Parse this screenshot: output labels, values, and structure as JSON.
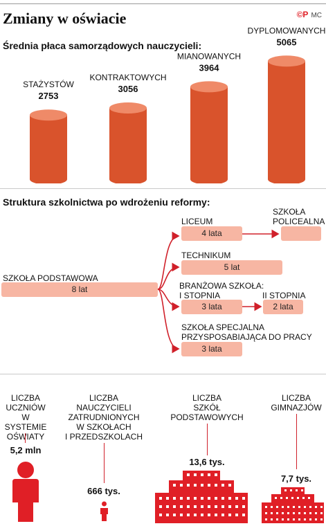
{
  "header": {
    "title": "Zmiany w oświacie",
    "brand_logo": "©P",
    "brand_text": "MC"
  },
  "colors": {
    "accent": "#e01f26",
    "cylinder": "#d9532c",
    "cylinder_top": "#ef8a68",
    "box": "#f7b6a3",
    "arrow": "#d0202a"
  },
  "salary": {
    "heading": "Średnia płaca samorządowych nauczycieli:"
  },
  "chart_data": {
    "type": "bar",
    "categories": [
      "STAŻYSTÓW",
      "KONTRAKTOWYCH",
      "MIANOWANYCH",
      "DYPLOMOWANYCH"
    ],
    "values": [
      2753,
      3056,
      3964,
      5065
    ],
    "value_labels": [
      "2753",
      "3056",
      "3964",
      "5065"
    ],
    "ylim": [
      0,
      5400
    ]
  },
  "structure": {
    "heading": "Struktura szkolnictwa po wdrożeniu reformy:",
    "primary": {
      "label": "SZKOŁA PODSTAWOWA",
      "years": "8 lat"
    },
    "liceum": {
      "label": "LICEUM",
      "years": "4 lata"
    },
    "policealna": {
      "label_line1": "SZKOŁA",
      "label_line2": "POLICEALNA"
    },
    "technikum": {
      "label": "TECHNIKUM",
      "years": "5 lat"
    },
    "branzowa": {
      "label_line1": "BRANŻOWA SZKOŁA:",
      "label_line2": "I STOPNIA",
      "years": "3 lata",
      "second_label": "II STOPNIA",
      "second_years": "2 lata"
    },
    "specjalna": {
      "label_line1": "SZKOŁA SPECJALNA",
      "label_line2": "PRZYSPOSABIAJĄCA DO PRACY",
      "years": "3 lata"
    }
  },
  "stats": [
    {
      "lines": [
        "LICZBA",
        "UCZNIÓW",
        "W SYSTEMIE",
        "OŚWIATY"
      ],
      "value": "5,2 mln"
    },
    {
      "lines": [
        "LICZBA",
        "NAUCZYCIELI",
        "ZATRUDNIONYCH",
        "W SZKOŁACH",
        "I PRZEDSZKOLACH"
      ],
      "value": "666 tys."
    },
    {
      "lines": [
        "LICZBA",
        "SZKÓŁ",
        "PODSTAWOWYCH"
      ],
      "value": "13,6 tys."
    },
    {
      "lines": [
        "LICZBA",
        "GIMNAZJÓW"
      ],
      "value": "7,7 tys."
    }
  ]
}
